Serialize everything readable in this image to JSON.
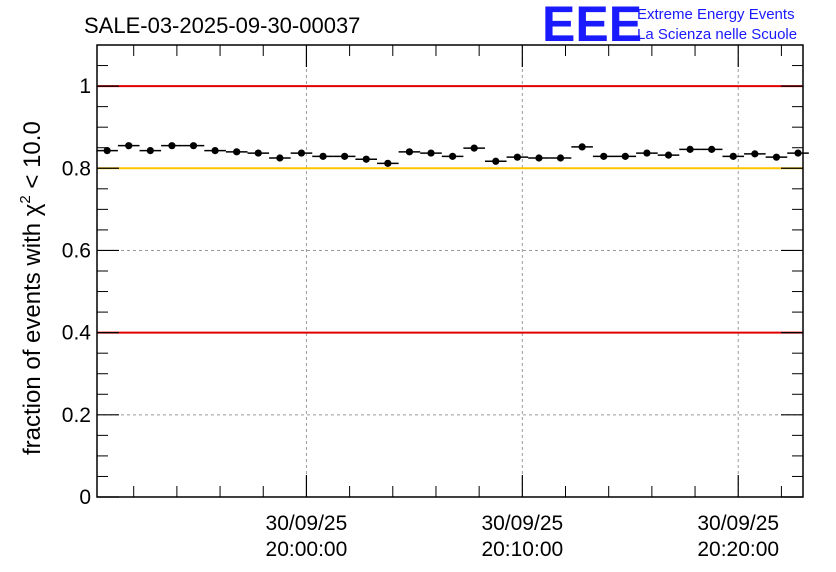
{
  "chart_data": {
    "type": "scatter",
    "title": "SALE-03-2025-09-30-00037",
    "ylabel_prefix": "fraction of events with ",
    "ylabel_symbol": "χ",
    "ylabel_sup": "2",
    "ylabel_suffix": " < 10.0",
    "ylim": [
      0,
      1.1
    ],
    "yticks": [
      {
        "value": 0,
        "label": "0"
      },
      {
        "value": 0.2,
        "label": "0.2"
      },
      {
        "value": 0.4,
        "label": "0.4"
      },
      {
        "value": 0.6,
        "label": "0.6"
      },
      {
        "value": 0.8,
        "label": "0.8"
      },
      {
        "value": 1.0,
        "label": "1"
      }
    ],
    "xlim_minutes": [
      -9.7,
      23.0
    ],
    "xticks": [
      {
        "minutes": 0,
        "date": "30/09/25",
        "time": "20:00:00"
      },
      {
        "minutes": 10,
        "date": "30/09/25",
        "time": "20:10:00"
      },
      {
        "minutes": 20,
        "date": "30/09/25",
        "time": "20:20:00"
      }
    ],
    "reference_lines": [
      {
        "y": 1.0,
        "color": "#e00000"
      },
      {
        "y": 0.8,
        "color": "#ffc400"
      },
      {
        "y": 0.4,
        "color": "#e00000"
      }
    ],
    "grid": true,
    "points": {
      "x_minutes": [
        -9.23,
        -8.23,
        -7.23,
        -6.23,
        -5.23,
        -4.23,
        -3.23,
        -2.23,
        -1.23,
        -0.23,
        0.77,
        1.77,
        2.77,
        3.77,
        4.77,
        5.77,
        6.77,
        7.77,
        8.77,
        9.77,
        10.77,
        11.77,
        12.77,
        13.77,
        14.77,
        15.77,
        16.77,
        17.77,
        18.77,
        19.77,
        20.77,
        21.77,
        22.77
      ],
      "y": [
        0.843,
        0.855,
        0.843,
        0.855,
        0.855,
        0.843,
        0.84,
        0.837,
        0.825,
        0.837,
        0.829,
        0.829,
        0.822,
        0.812,
        0.84,
        0.837,
        0.829,
        0.849,
        0.817,
        0.827,
        0.825,
        0.825,
        0.852,
        0.829,
        0.829,
        0.837,
        0.832,
        0.846,
        0.846,
        0.829,
        0.835,
        0.827,
        0.837
      ],
      "x_halfwidth_minutes": 0.5,
      "y_error": 0.006
    }
  },
  "branding": {
    "logo": "EEE",
    "line1": "Extreme Energy Events",
    "line2": "La Scienza nelle Scuole"
  }
}
